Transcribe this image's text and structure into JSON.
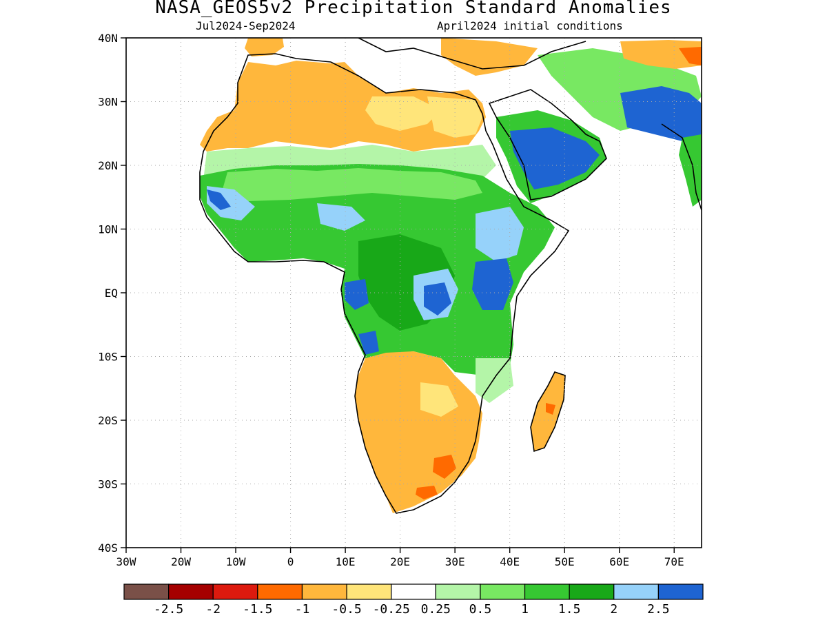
{
  "header": {
    "title": "NASA_GEOS5v2 Precipitation Standard Anomalies",
    "period": "Jul2024-Sep2024",
    "init": "April2024 initial conditions"
  },
  "axes": {
    "lat_labels": [
      "40N",
      "30N",
      "20N",
      "10N",
      "EQ",
      "10S",
      "20S",
      "30S",
      "40S"
    ],
    "lat_values": [
      40,
      30,
      20,
      10,
      0,
      -10,
      -20,
      -30,
      -40
    ],
    "lon_labels": [
      "30W",
      "20W",
      "10W",
      "0",
      "10E",
      "20E",
      "30E",
      "40E",
      "50E",
      "60E",
      "70E"
    ],
    "lon_values": [
      -30,
      -20,
      -10,
      0,
      10,
      20,
      30,
      40,
      50,
      60,
      70
    ],
    "lon_range": [
      -30,
      75
    ],
    "lat_range": [
      -40,
      40
    ],
    "grid": "dotted"
  },
  "legend": {
    "colors": [
      "#7a5048",
      "#a50000",
      "#dd1a0e",
      "#ff6a00",
      "#ffb73c",
      "#ffe57a",
      "#ffffff",
      "#b4f5a8",
      "#78e862",
      "#36c832",
      "#18a818",
      "#96d2fa",
      "#1e64d2"
    ],
    "labels": [
      "-2.5",
      "-2",
      "-1.5",
      "-1",
      "-0.5",
      "-0.25",
      "0.25",
      "0.5",
      "1",
      "1.5",
      "2",
      "2.5"
    ]
  },
  "map_colors": {
    "dry": "#ffb73c",
    "slightly_dry": "#ffe57a",
    "very_dry": "#ff6a00",
    "wet1": "#b4f5a8",
    "wet2": "#78e862",
    "wet3": "#36c832",
    "wet4": "#18a818",
    "wet5": "#96d2fa",
    "wet6": "#1e64d2"
  }
}
